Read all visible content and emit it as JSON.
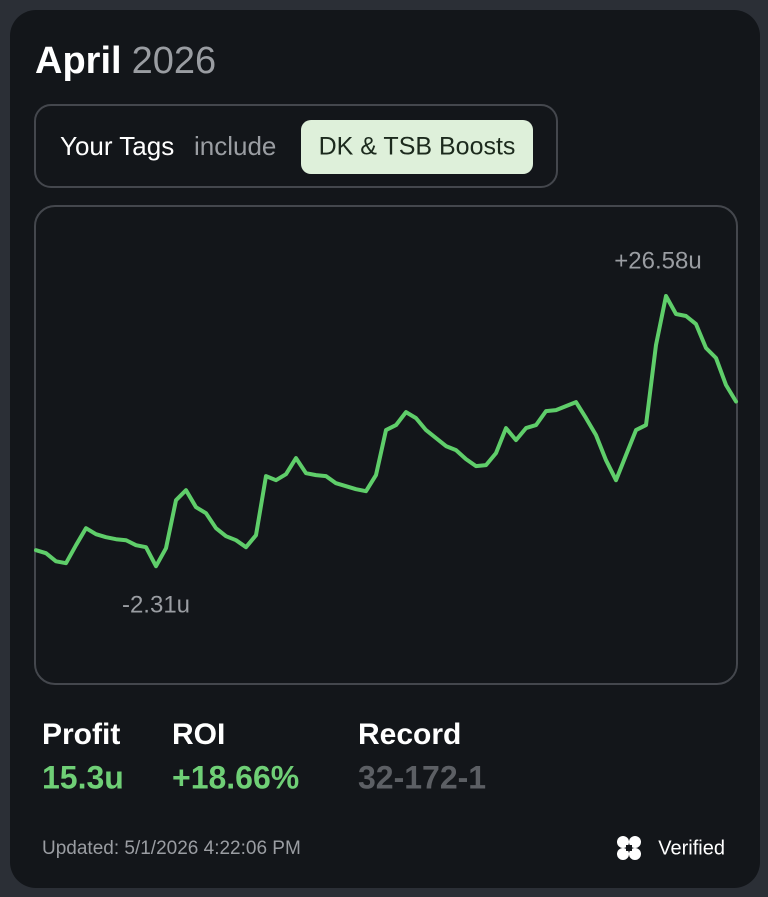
{
  "header": {
    "month": "April",
    "year": "2026"
  },
  "filter": {
    "label": "Your Tags",
    "operator": "include",
    "tag": "DK & TSB Boosts"
  },
  "chart_data": {
    "type": "line",
    "color": "#5fce6a",
    "ylim": [
      -14.9,
      36.2
    ],
    "annotations": [
      "+26.58u",
      "-2.31u"
    ],
    "values": [
      -0.6,
      -0.92,
      -1.78,
      -1.99,
      -0.06,
      1.76,
      1.11,
      0.79,
      0.58,
      0.47,
      -0.06,
      -0.28,
      -2.31,
      -0.38,
      4.75,
      5.82,
      4.0,
      3.36,
      1.76,
      0.9,
      0.47,
      -0.28,
      1.01,
      7.32,
      6.89,
      7.53,
      9.25,
      7.64,
      7.43,
      7.32,
      6.57,
      6.25,
      5.93,
      5.71,
      7.43,
      12.24,
      12.78,
      14.17,
      13.53,
      12.24,
      11.39,
      10.53,
      10.1,
      9.14,
      8.39,
      8.5,
      9.78,
      12.46,
      11.17,
      12.46,
      12.78,
      14.27,
      14.38,
      14.81,
      15.24,
      13.53,
      11.71,
      9.03,
      6.89,
      9.57,
      12.24,
      12.78,
      21.34,
      26.58,
      24.65,
      24.44,
      23.58,
      21.02,
      19.95,
      17.06,
      15.3
    ]
  },
  "stats": [
    {
      "label": "Profit",
      "value": "15.3u"
    },
    {
      "label": "ROI",
      "value": "+18.66%"
    },
    {
      "label": "Record",
      "value": "32-172-1"
    }
  ],
  "footer": {
    "updated": "Updated: 5/1/2026 4:22:06 PM",
    "badge": "Verified"
  }
}
